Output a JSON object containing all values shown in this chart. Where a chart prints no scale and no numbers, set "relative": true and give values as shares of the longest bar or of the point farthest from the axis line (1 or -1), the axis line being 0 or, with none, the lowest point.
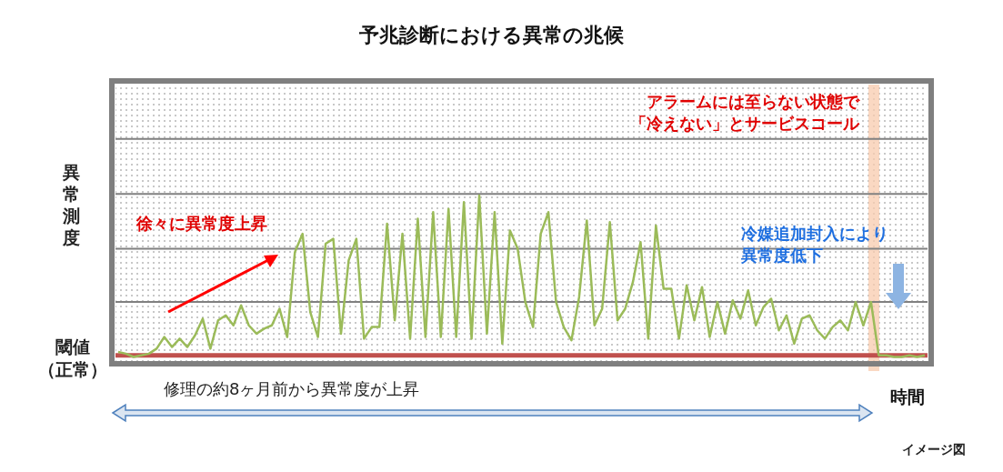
{
  "chart_data": {
    "type": "line",
    "relative": true,
    "title": "予兆診断における異常の兆候",
    "ylabel": "異常測度",
    "xlabel": "時間",
    "categories": [
      null,
      null,
      null,
      null,
      null,
      null,
      null,
      null,
      null,
      null,
      null,
      null,
      null,
      null,
      null,
      null,
      null,
      null,
      null,
      null,
      null,
      null,
      null,
      null,
      null,
      null,
      null,
      null,
      null,
      null,
      null,
      null,
      null,
      null,
      null,
      null,
      null,
      null,
      null,
      null,
      null,
      null,
      null,
      null,
      null,
      null,
      null,
      null,
      null,
      null,
      null,
      null,
      null,
      null,
      null,
      null,
      null,
      null,
      null,
      null,
      null,
      null,
      null,
      null,
      null,
      null,
      null,
      null,
      null,
      null,
      null,
      null,
      null,
      null,
      null,
      null,
      null,
      null,
      null,
      null,
      null,
      null,
      null,
      null,
      null,
      null,
      null,
      null,
      null,
      null,
      null,
      null,
      null,
      null,
      null,
      null,
      null,
      null,
      null,
      null,
      null,
      null,
      null,
      null,
      null,
      null
    ],
    "series": [
      {
        "color": "#9bbb59",
        "values": [
          0.06,
          0.05,
          0.03,
          0.04,
          0.05,
          0.08,
          0.15,
          0.09,
          0.14,
          0.09,
          0.16,
          0.26,
          0.08,
          0.25,
          0.28,
          0.22,
          0.34,
          0.22,
          0.17,
          0.2,
          0.22,
          0.32,
          0.15,
          0.66,
          0.77,
          0.3,
          0.15,
          0.71,
          0.74,
          0.17,
          0.61,
          0.74,
          0.14,
          0.21,
          0.21,
          0.83,
          0.25,
          0.77,
          0.14,
          0.86,
          0.15,
          0.9,
          0.15,
          0.92,
          0.15,
          0.96,
          0.14,
          1.0,
          0.17,
          0.9,
          0.11,
          0.79,
          0.68,
          0.36,
          0.21,
          0.77,
          0.9,
          0.36,
          0.21,
          0.13,
          0.39,
          0.85,
          0.22,
          0.32,
          0.84,
          0.25,
          0.32,
          0.48,
          0.72,
          0.14,
          0.82,
          0.44,
          0.44,
          0.14,
          0.46,
          0.25,
          0.45,
          0.15,
          0.36,
          0.17,
          0.37,
          0.26,
          0.43,
          0.22,
          0.33,
          0.38,
          0.19,
          0.28,
          0.11,
          0.26,
          0.28,
          0.19,
          0.14,
          0.21,
          0.25,
          0.19,
          0.36,
          0.22,
          0.36,
          0.04,
          0.04,
          0.03,
          0.03,
          0.04,
          0.03,
          0.04
        ]
      }
    ],
    "ref_lines": [
      {
        "axis": "y",
        "value": 0.04,
        "label": "閾値（正常）",
        "color": "#c0504d"
      },
      {
        "axis": "y",
        "value": 0.36,
        "color": "#808080"
      },
      {
        "axis": "y",
        "value": 0.68,
        "color": "#808080"
      },
      {
        "axis": "y",
        "value": 1.01,
        "color": "#808080"
      },
      {
        "axis": "y",
        "value": 1.34,
        "color": "#808080"
      }
    ],
    "annotations": [
      "アラームには至らない状態で「冷えない」とサービスコール",
      "徐々に異常度上昇",
      "冷媒追加封入により異常度低下",
      "修理の約8ヶ月前から異常度が上昇",
      "イメージ図"
    ]
  }
}
